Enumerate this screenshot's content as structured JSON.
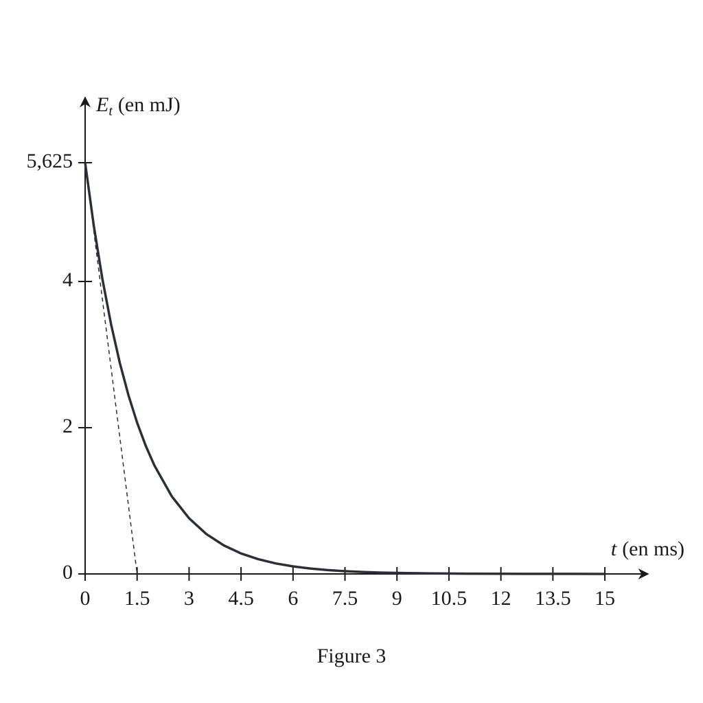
{
  "chart_data": {
    "type": "line",
    "y_label": {
      "symbol": "E",
      "subscript": "t",
      "unit": "(en mJ)"
    },
    "x_label": {
      "symbol": "t",
      "unit": "(en ms)"
    },
    "caption": "Figure 3",
    "xlim": [
      0,
      16.3
    ],
    "ylim": [
      0,
      6.5
    ],
    "xticks": [
      0,
      1.5,
      3,
      4.5,
      6,
      7.5,
      9,
      10.5,
      12,
      13.5,
      15
    ],
    "yticks": [
      0,
      2,
      4,
      {
        "value": 5.625,
        "label": "5,625"
      }
    ],
    "series": [
      {
        "color": "#2b3038",
        "style": "solid",
        "x": [
          0,
          0.25,
          0.5,
          0.75,
          1,
          1.25,
          1.5,
          1.75,
          2,
          2.5,
          3,
          3.5,
          4,
          4.5,
          5,
          5.5,
          6,
          6.5,
          7,
          7.5,
          8,
          8.5,
          9,
          9.5,
          10,
          11,
          12,
          13,
          14,
          15
        ],
        "values": [
          5.625,
          4.762,
          4.03,
          3.412,
          2.888,
          2.445,
          2.069,
          1.751,
          1.483,
          1.062,
          0.761,
          0.545,
          0.391,
          0.28,
          0.201,
          0.144,
          0.103,
          0.074,
          0.053,
          0.038,
          0.027,
          0.019,
          0.014,
          0.01,
          0.007,
          0.004,
          0.002,
          0.001,
          0.001,
          0
        ]
      },
      {
        "color": "#2b3038",
        "style": "dashed",
        "x": [
          0,
          1.5
        ],
        "values": [
          5.625,
          0
        ]
      }
    ]
  }
}
